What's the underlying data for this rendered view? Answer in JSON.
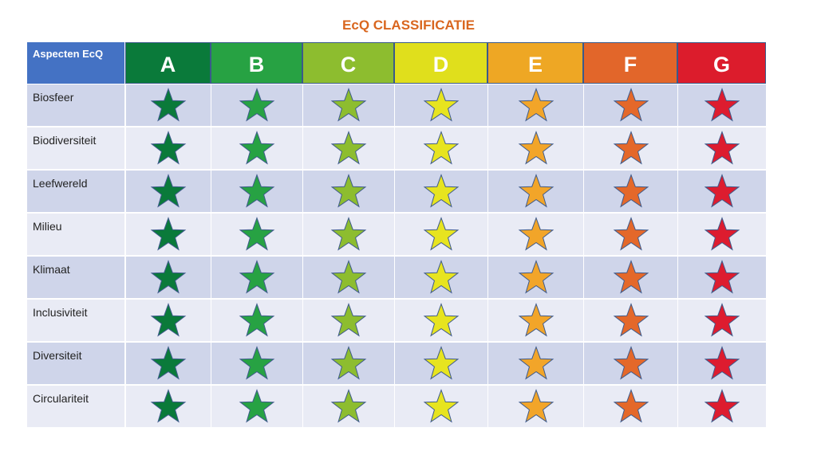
{
  "title": "EcQ CLASSIFICATIE",
  "table": {
    "header_label": "Aspecten EcQ",
    "classes": [
      {
        "label": "A",
        "color": "#0a7a3a",
        "star": "#0a7a3a"
      },
      {
        "label": "B",
        "color": "#27a243",
        "star": "#27a243"
      },
      {
        "label": "C",
        "color": "#8dbd2f",
        "star": "#8dbd2f"
      },
      {
        "label": "D",
        "color": "#e0df1c",
        "star": "#e7e41f"
      },
      {
        "label": "E",
        "color": "#eea724",
        "star": "#f2a529"
      },
      {
        "label": "F",
        "color": "#e2662a",
        "star": "#e4682a"
      },
      {
        "label": "G",
        "color": "#dc1c2c",
        "star": "#dd1c2f"
      }
    ],
    "rows": [
      "Biosfeer",
      "Biodiversiteit",
      "Leefwereld",
      "Milieu",
      "Klimaat",
      "Inclusiviteit",
      "Diversiteit",
      "Circulariteit"
    ],
    "row_colors": [
      "#cfd5ea",
      "#e9ebf5"
    ],
    "cell_icon": "star-icon"
  }
}
